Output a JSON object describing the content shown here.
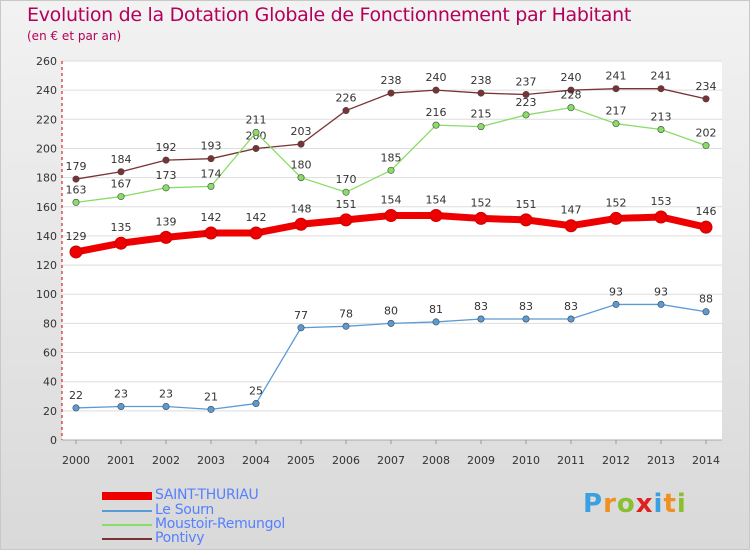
{
  "chart_data": {
    "type": "line",
    "title": "Evolution de la Dotation Globale de Fonctionnement par Habitant",
    "subtitle": "(en € et par an)",
    "xlabel": "",
    "ylabel": "",
    "ylim": [
      0,
      260
    ],
    "ytick_step": 20,
    "grid": "horizontal",
    "categories": [
      "2000",
      "2001",
      "2002",
      "2003",
      "2004",
      "2005",
      "2006",
      "2007",
      "2008",
      "2009",
      "2010",
      "2011",
      "2012",
      "2013",
      "2014"
    ],
    "series": [
      {
        "name": "Pontivy",
        "color": "#7a3236",
        "values": [
          179,
          184,
          192,
          193,
          200,
          203,
          226,
          238,
          240,
          238,
          237,
          240,
          241,
          241,
          234
        ]
      },
      {
        "name": "Moustoir-Remungol",
        "color": "#88dd66",
        "values": [
          163,
          167,
          173,
          174,
          211,
          180,
          170,
          185,
          216,
          215,
          223,
          228,
          217,
          213,
          202
        ]
      },
      {
        "name": "Le Sourn",
        "color": "#5a9bd5",
        "values": [
          22,
          23,
          23,
          21,
          25,
          77,
          78,
          80,
          81,
          83,
          83,
          83,
          93,
          93,
          88
        ]
      },
      {
        "name": "SAINT-THURIAU",
        "color": "#ee0000",
        "values": [
          129,
          135,
          139,
          142,
          142,
          148,
          151,
          154,
          154,
          152,
          151,
          147,
          152,
          153,
          146
        ]
      }
    ],
    "legend_order": [
      "SAINT-THURIAU",
      "Le Sourn",
      "Moustoir-Remungol",
      "Pontivy"
    ],
    "legend_position": "bottom-left"
  },
  "brand": {
    "letters": [
      "P",
      "r",
      "o",
      "x",
      "i",
      "t",
      "i"
    ],
    "colors": [
      "#3aa0e0",
      "#f09020",
      "#88c030",
      "#e02020",
      "#3aa0e0",
      "#f09020",
      "#88c030"
    ]
  }
}
